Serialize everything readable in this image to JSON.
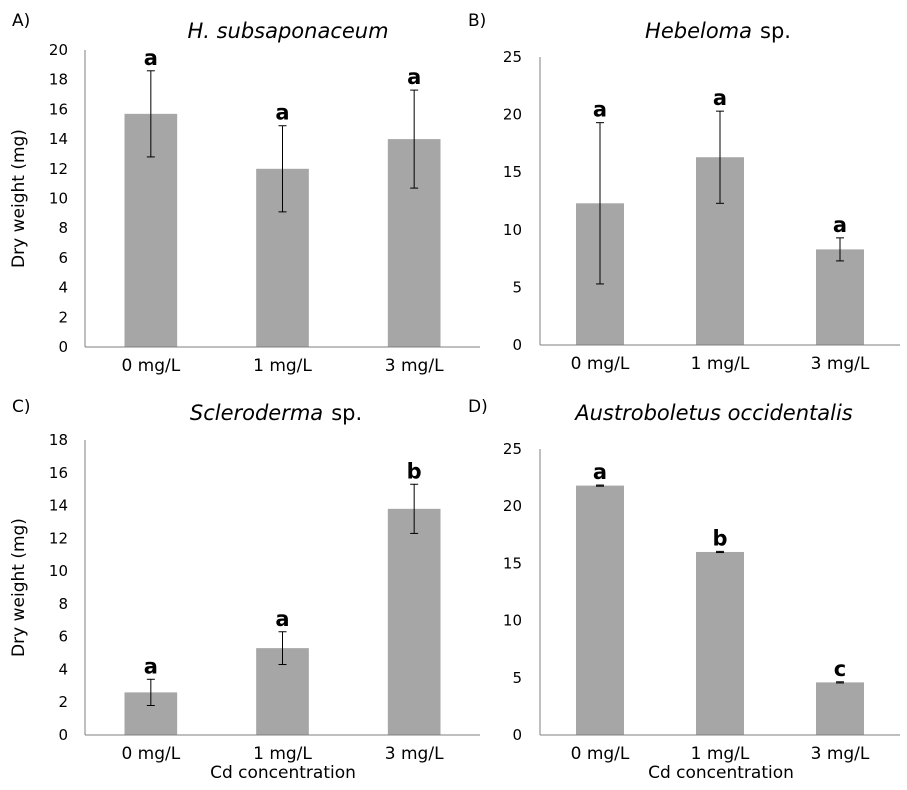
{
  "figure": {
    "bar_color": "#a6a6a6",
    "axis_color": "#7f7f7f",
    "errorbar_color": "#000000"
  },
  "chart_data": [
    {
      "panel": "A)",
      "type": "bar",
      "title": "H. subsaponaceum",
      "title_suffix": "",
      "xlabel": "",
      "ylabel": "Dry weight (mg)",
      "categories": [
        "0 mg/L",
        "1 mg/L",
        "3 mg/L"
      ],
      "values": [
        15.7,
        12.0,
        14.0
      ],
      "errors": [
        2.9,
        2.9,
        3.3
      ],
      "significance": [
        "a",
        "a",
        "a"
      ],
      "ylim": [
        0,
        20
      ],
      "yticks": [
        0,
        2,
        4,
        6,
        8,
        10,
        12,
        14,
        16,
        18,
        20
      ],
      "grid": false
    },
    {
      "panel": "B)",
      "type": "bar",
      "title": "Hebeloma",
      "title_suffix": "sp.",
      "xlabel": "",
      "ylabel": "",
      "categories": [
        "0 mg/L",
        "1 mg/L",
        "3 mg/L"
      ],
      "values": [
        12.3,
        16.3,
        8.3
      ],
      "errors": [
        7.0,
        4.0,
        1.0
      ],
      "significance": [
        "a",
        "a",
        "a"
      ],
      "ylim": [
        0,
        25
      ],
      "yticks": [
        0,
        5,
        10,
        15,
        20,
        25
      ],
      "grid": false
    },
    {
      "panel": "C)",
      "type": "bar",
      "title": "Scleroderma",
      "title_suffix": "sp.",
      "xlabel": "Cd concentration",
      "ylabel": "Dry weight (mg)",
      "categories": [
        "0 mg/L",
        "1 mg/L",
        "3 mg/L"
      ],
      "values": [
        2.6,
        5.3,
        13.8
      ],
      "errors": [
        0.8,
        1.0,
        1.5
      ],
      "significance": [
        "a",
        "a",
        "b"
      ],
      "ylim": [
        0,
        18
      ],
      "yticks": [
        0,
        2,
        4,
        6,
        8,
        10,
        12,
        14,
        16,
        18
      ],
      "grid": false
    },
    {
      "panel": "D)",
      "type": "bar",
      "title": "Austroboletus occidentalis",
      "title_suffix": "",
      "xlabel": "Cd concentration",
      "ylabel": "",
      "categories": [
        "0 mg/L",
        "1 mg/L",
        "3 mg/L"
      ],
      "values": [
        21.8,
        16.0,
        4.6
      ],
      "errors": [
        0.05,
        0.05,
        0.05
      ],
      "significance": [
        "a",
        "b",
        "c"
      ],
      "ylim": [
        0,
        25
      ],
      "yticks": [
        0,
        5,
        10,
        15,
        20,
        25
      ],
      "grid": false
    }
  ]
}
